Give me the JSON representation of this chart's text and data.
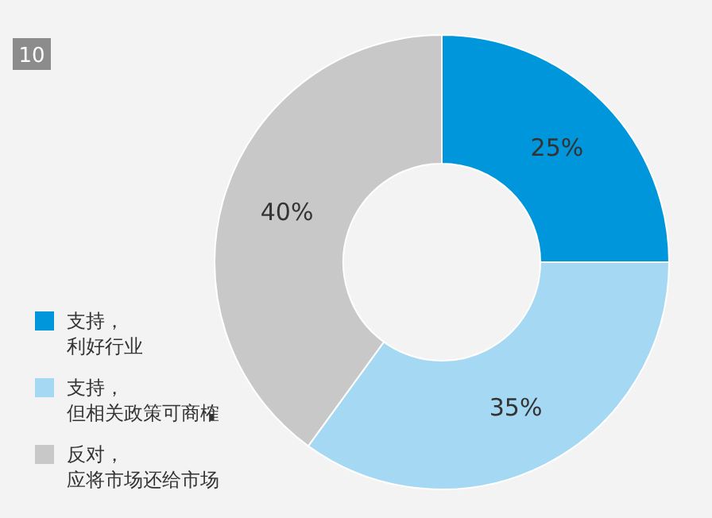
{
  "chart_data": {
    "type": "donut",
    "categories": [
      "支持，利好行业",
      "支持，但相关政策可商榷",
      "反对，应将市场还给市场"
    ],
    "values": [
      25,
      35,
      40
    ],
    "value_labels": [
      "25%",
      "35%",
      "40%"
    ],
    "colors": [
      "#0096db",
      "#a5d8f3",
      "#c8c8c8"
    ],
    "legend": "bottom left",
    "annotations": [
      "10"
    ]
  }
}
